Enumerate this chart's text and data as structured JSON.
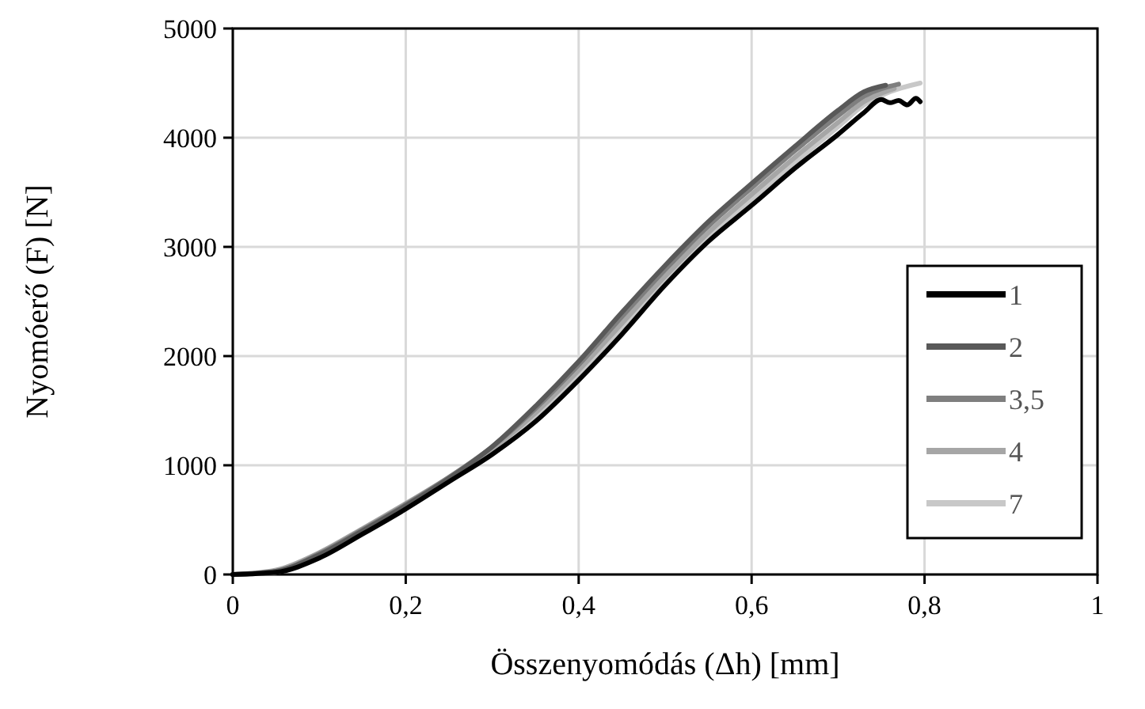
{
  "chart_data": {
    "type": "line",
    "xlabel": "Összenyomódás (Δh) [mm]",
    "ylabel": "Nyomóerő (F) [N]",
    "xlim": [
      0,
      1
    ],
    "ylim": [
      0,
      5000
    ],
    "xticks": [
      {
        "value": 0,
        "label": "0"
      },
      {
        "value": 0.2,
        "label": "0,2"
      },
      {
        "value": 0.4,
        "label": "0,4"
      },
      {
        "value": 0.6,
        "label": "0,6"
      },
      {
        "value": 0.8,
        "label": "0,8"
      },
      {
        "value": 1,
        "label": "1"
      }
    ],
    "yticks": [
      0,
      1000,
      2000,
      3000,
      4000,
      5000
    ],
    "grid": true,
    "legend": "right",
    "line_style": "solid",
    "series": [
      {
        "name": "1",
        "color": "#000000",
        "x": [
          0,
          0.05,
          0.1,
          0.15,
          0.2,
          0.25,
          0.3,
          0.35,
          0.4,
          0.45,
          0.5,
          0.55,
          0.6,
          0.65,
          0.7,
          0.73,
          0.75,
          0.76,
          0.77,
          0.78,
          0.79,
          0.795
        ],
        "values": [
          0,
          20,
          150,
          370,
          600,
          850,
          1100,
          1400,
          1780,
          2200,
          2650,
          3050,
          3380,
          3720,
          4030,
          4230,
          4350,
          4320,
          4340,
          4300,
          4360,
          4330
        ]
      },
      {
        "name": "2",
        "color": "#595959",
        "x": [
          0,
          0.05,
          0.1,
          0.15,
          0.2,
          0.25,
          0.3,
          0.35,
          0.4,
          0.45,
          0.5,
          0.55,
          0.6,
          0.65,
          0.7,
          0.73,
          0.755
        ],
        "values": [
          0,
          30,
          180,
          400,
          630,
          880,
          1170,
          1540,
          1950,
          2400,
          2830,
          3230,
          3580,
          3920,
          4250,
          4420,
          4480
        ]
      },
      {
        "name": "3,5",
        "color": "#7f7f7f",
        "x": [
          0,
          0.05,
          0.1,
          0.15,
          0.2,
          0.25,
          0.3,
          0.35,
          0.4,
          0.45,
          0.5,
          0.55,
          0.6,
          0.65,
          0.7,
          0.73,
          0.77
        ],
        "values": [
          0,
          30,
          190,
          410,
          640,
          890,
          1170,
          1520,
          1920,
          2360,
          2790,
          3190,
          3540,
          3880,
          4200,
          4380,
          4490
        ]
      },
      {
        "name": "4",
        "color": "#a6a6a6",
        "x": [
          0,
          0.05,
          0.1,
          0.15,
          0.2,
          0.25,
          0.3,
          0.35,
          0.4,
          0.45,
          0.5,
          0.55,
          0.6,
          0.65,
          0.7,
          0.73,
          0.765
        ],
        "values": [
          0,
          40,
          200,
          420,
          650,
          890,
          1150,
          1480,
          1870,
          2300,
          2730,
          3130,
          3480,
          3820,
          4140,
          4330,
          4450
        ]
      },
      {
        "name": "7",
        "color": "#c8c8c8",
        "x": [
          0,
          0.05,
          0.1,
          0.15,
          0.2,
          0.25,
          0.3,
          0.35,
          0.4,
          0.45,
          0.5,
          0.55,
          0.6,
          0.65,
          0.7,
          0.73,
          0.76,
          0.795
        ],
        "values": [
          0,
          20,
          170,
          400,
          640,
          880,
          1130,
          1450,
          1830,
          2250,
          2680,
          3080,
          3430,
          3770,
          4100,
          4300,
          4420,
          4500
        ]
      }
    ]
  }
}
